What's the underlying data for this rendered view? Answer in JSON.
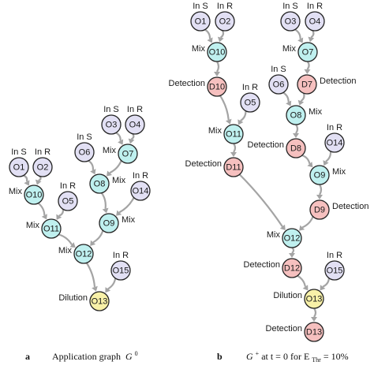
{
  "colors": {
    "operation_node": "#bff0ef",
    "input_node": "#e2e0f4",
    "detection_node": "#f6c0bf",
    "dilution_node": "#f8f1a8",
    "edge": "#a4a4a4"
  },
  "panel_a": {
    "letter": "a",
    "caption": "Application graph",
    "caption_symbol": "G",
    "caption_superscript": "0",
    "nodes": [
      {
        "id": "O1",
        "kind": "input",
        "note": "In S"
      },
      {
        "id": "O2",
        "kind": "input",
        "note": "In R"
      },
      {
        "id": "O3",
        "kind": "input",
        "note": "In S"
      },
      {
        "id": "O4",
        "kind": "input",
        "note": "In R"
      },
      {
        "id": "O5",
        "kind": "input",
        "note": "In R"
      },
      {
        "id": "O6",
        "kind": "input",
        "note": "In S"
      },
      {
        "id": "O7",
        "kind": "operation",
        "note": "Mix"
      },
      {
        "id": "O8",
        "kind": "operation",
        "note": "Mix"
      },
      {
        "id": "O9",
        "kind": "operation",
        "note": "Mix"
      },
      {
        "id": "O10",
        "kind": "operation",
        "note": "Mix"
      },
      {
        "id": "O11",
        "kind": "operation",
        "note": "Mix"
      },
      {
        "id": "O12",
        "kind": "operation",
        "note": "Mix"
      },
      {
        "id": "O13",
        "kind": "dilution",
        "note": "Dilution"
      },
      {
        "id": "O14",
        "kind": "input",
        "note": "In R"
      },
      {
        "id": "O15",
        "kind": "input",
        "note": "In R"
      }
    ],
    "edges": [
      [
        "O1",
        "O10"
      ],
      [
        "O2",
        "O10"
      ],
      [
        "O10",
        "O11"
      ],
      [
        "O5",
        "O11"
      ],
      [
        "O3",
        "O7"
      ],
      [
        "O4",
        "O7"
      ],
      [
        "O6",
        "O8"
      ],
      [
        "O7",
        "O8"
      ],
      [
        "O8",
        "O9"
      ],
      [
        "O14",
        "O9"
      ],
      [
        "O11",
        "O12"
      ],
      [
        "O9",
        "O12"
      ],
      [
        "O12",
        "O13"
      ],
      [
        "O15",
        "O13"
      ]
    ]
  },
  "panel_b": {
    "letter": "b",
    "caption_symbol": "G",
    "caption_superscript": "+",
    "caption_mid": " at t = 0 for E",
    "caption_subscript": "Thr",
    "caption_end": " = 10%",
    "nodes": [
      {
        "id": "O1",
        "kind": "input",
        "note": "In S"
      },
      {
        "id": "O2",
        "kind": "input",
        "note": "In R"
      },
      {
        "id": "O3",
        "kind": "input",
        "note": "In S"
      },
      {
        "id": "O4",
        "kind": "input",
        "note": "In R"
      },
      {
        "id": "O10",
        "kind": "operation",
        "note": "Mix"
      },
      {
        "id": "O7",
        "kind": "operation",
        "note": "Mix"
      },
      {
        "id": "D10",
        "kind": "detection",
        "note": "Detection"
      },
      {
        "id": "O5",
        "kind": "input",
        "note": "In R"
      },
      {
        "id": "O6",
        "kind": "input",
        "note": "In S"
      },
      {
        "id": "D7",
        "kind": "detection",
        "note": "Detection"
      },
      {
        "id": "O11",
        "kind": "operation",
        "note": "Mix"
      },
      {
        "id": "O8",
        "kind": "operation",
        "note": "Mix"
      },
      {
        "id": "D8",
        "kind": "detection",
        "note": "Detection"
      },
      {
        "id": "O14",
        "kind": "input",
        "note": "In R"
      },
      {
        "id": "D11",
        "kind": "detection",
        "note": "Detection"
      },
      {
        "id": "O9",
        "kind": "operation",
        "note": "Mix"
      },
      {
        "id": "D9",
        "kind": "detection",
        "note": "Detection"
      },
      {
        "id": "O12",
        "kind": "operation",
        "note": "Mix"
      },
      {
        "id": "D12",
        "kind": "detection",
        "note": "Detection"
      },
      {
        "id": "O15",
        "kind": "input",
        "note": "In R"
      },
      {
        "id": "O13",
        "kind": "dilution",
        "note": "Dilution"
      },
      {
        "id": "D13",
        "kind": "detection",
        "note": "Detection"
      }
    ],
    "edges": [
      [
        "O1",
        "O10"
      ],
      [
        "O2",
        "O10"
      ],
      [
        "O3",
        "O7"
      ],
      [
        "O4",
        "O7"
      ],
      [
        "O10",
        "D10"
      ],
      [
        "O7",
        "D7"
      ],
      [
        "D10",
        "O11"
      ],
      [
        "O5",
        "O11"
      ],
      [
        "O6",
        "O8"
      ],
      [
        "D7",
        "O8"
      ],
      [
        "O11",
        "D11"
      ],
      [
        "O8",
        "D8"
      ],
      [
        "D8",
        "O9"
      ],
      [
        "O14",
        "O9"
      ],
      [
        "O9",
        "D9"
      ],
      [
        "D11",
        "O12"
      ],
      [
        "D9",
        "O12"
      ],
      [
        "O12",
        "D12"
      ],
      [
        "D12",
        "O13"
      ],
      [
        "O15",
        "O13"
      ],
      [
        "O13",
        "D13"
      ]
    ]
  }
}
